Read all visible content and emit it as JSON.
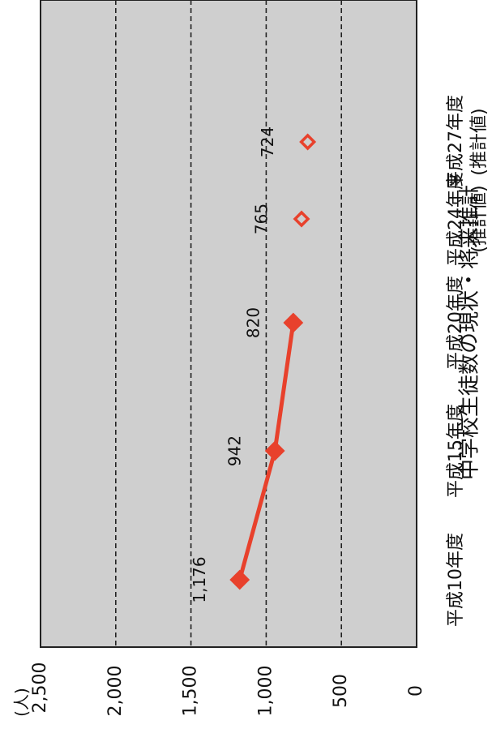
{
  "chart_data": {
    "type": "line",
    "title": "中学校生徒数の現状・将来推計",
    "unit_label": "(人)",
    "categories": [
      {
        "line1": "平成10年度",
        "line2": ""
      },
      {
        "line1": "平成15年度",
        "line2": ""
      },
      {
        "line1": "平成20年度",
        "line2": ""
      },
      {
        "line1": "平成24年度",
        "line2": "(推計値)"
      },
      {
        "line1": "平成27年度",
        "line2": "(推計値)"
      }
    ],
    "y_ticks": [
      "0",
      "500",
      "1,000",
      "1,500",
      "2,000",
      "2,500"
    ],
    "ylim": [
      0,
      2500
    ],
    "grid": "dashed horizontal at 500, 1000, 1500, 2000",
    "series": [
      {
        "style": "solid line with filled diamond markers",
        "color": "#e8412c",
        "values": [
          1176,
          942,
          820,
          null,
          null
        ],
        "labels": [
          "1,176",
          "942",
          "820",
          "",
          ""
        ]
      },
      {
        "style": "hollow diamond markers, no line",
        "color": "#e8412c",
        "values": [
          null,
          null,
          null,
          765,
          724
        ],
        "labels": [
          "",
          "",
          "",
          "765",
          "724"
        ]
      }
    ],
    "plot_background": "#cfcfcf"
  }
}
